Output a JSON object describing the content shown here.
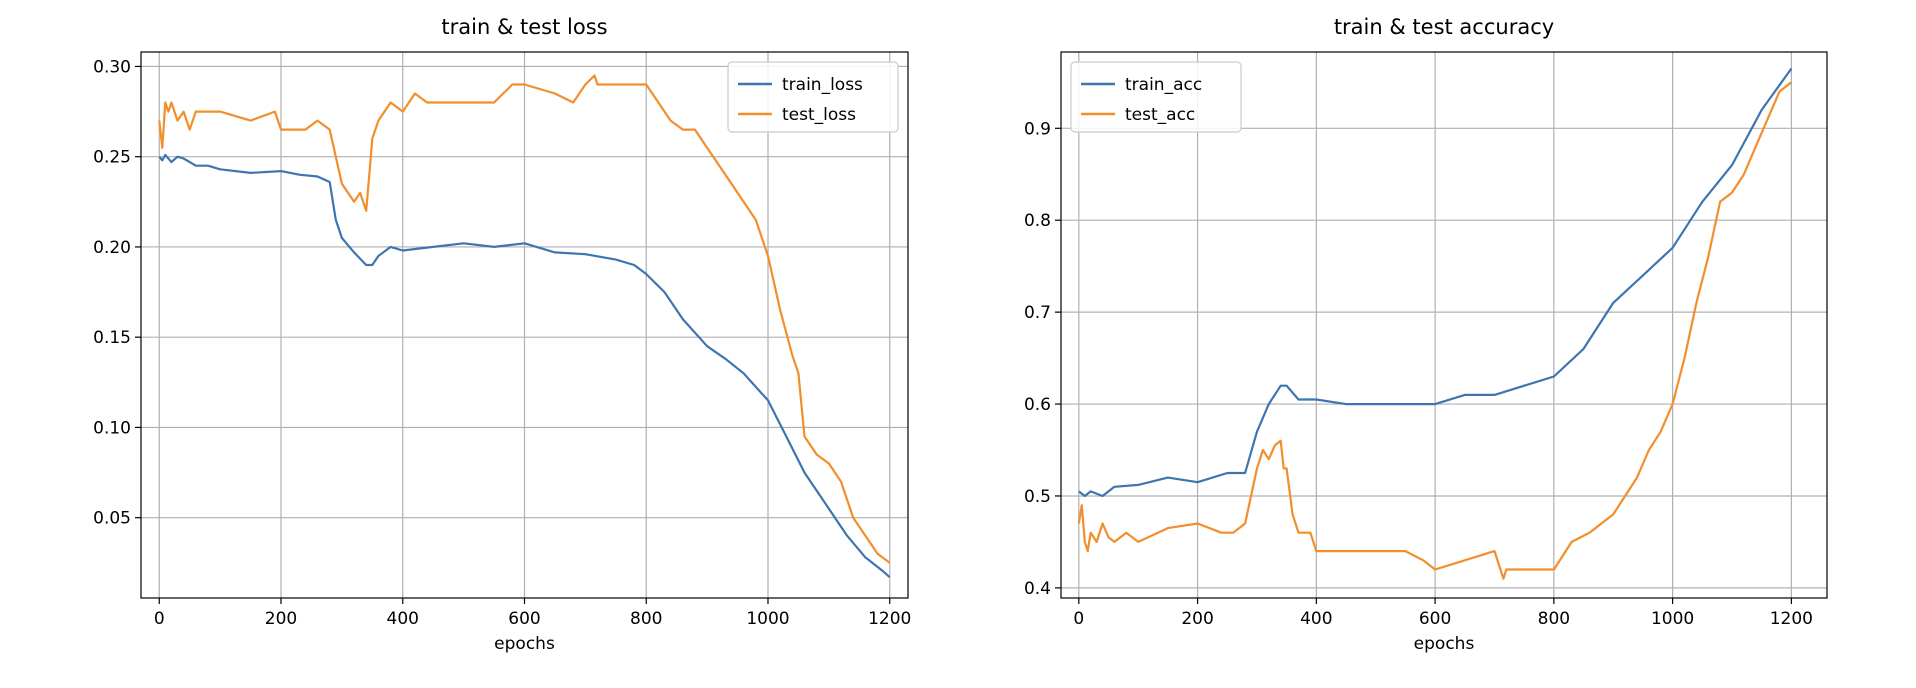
{
  "chart_data": [
    {
      "type": "line",
      "title": "train & test loss",
      "xlabel": "epochs",
      "ylabel": "",
      "xlim": [
        -30,
        1230
      ],
      "ylim": [
        0.0055,
        0.308
      ],
      "xticks": [
        0,
        200,
        400,
        600,
        800,
        1000,
        1200
      ],
      "xtick_labels": [
        "0",
        "200",
        "400",
        "600",
        "800",
        "1000",
        "1200"
      ],
      "yticks": [
        0.05,
        0.1,
        0.15,
        0.2,
        0.25,
        0.3
      ],
      "ytick_labels": [
        "0.05",
        "0.10",
        "0.15",
        "0.20",
        "0.25",
        "0.30"
      ],
      "grid": true,
      "legend": "top-right",
      "series": [
        {
          "name": "train_loss",
          "color": "#3e75b0",
          "x": [
            0,
            5,
            10,
            20,
            30,
            40,
            50,
            60,
            80,
            100,
            150,
            200,
            230,
            260,
            280,
            290,
            300,
            320,
            340,
            350,
            360,
            380,
            400,
            450,
            500,
            550,
            600,
            650,
            700,
            750,
            780,
            800,
            830,
            860,
            900,
            930,
            960,
            1000,
            1030,
            1060,
            1100,
            1130,
            1160,
            1190,
            1200
          ],
          "y": [
            0.25,
            0.248,
            0.251,
            0.247,
            0.25,
            0.249,
            0.247,
            0.245,
            0.245,
            0.243,
            0.241,
            0.242,
            0.24,
            0.239,
            0.236,
            0.215,
            0.205,
            0.197,
            0.19,
            0.19,
            0.195,
            0.2,
            0.198,
            0.2,
            0.202,
            0.2,
            0.202,
            0.197,
            0.196,
            0.193,
            0.19,
            0.185,
            0.175,
            0.16,
            0.145,
            0.138,
            0.13,
            0.115,
            0.095,
            0.075,
            0.055,
            0.04,
            0.028,
            0.02,
            0.017
          ]
        },
        {
          "name": "test_loss",
          "color": "#f28e2b",
          "x": [
            0,
            5,
            10,
            15,
            20,
            30,
            40,
            50,
            60,
            80,
            100,
            150,
            190,
            200,
            240,
            260,
            280,
            290,
            300,
            320,
            330,
            340,
            345,
            350,
            360,
            380,
            400,
            420,
            440,
            500,
            550,
            580,
            600,
            650,
            680,
            700,
            715,
            720,
            750,
            800,
            820,
            840,
            860,
            880,
            900,
            920,
            940,
            960,
            980,
            1000,
            1020,
            1040,
            1050,
            1060,
            1080,
            1100,
            1120,
            1140,
            1160,
            1180,
            1200
          ],
          "y": [
            0.27,
            0.255,
            0.28,
            0.275,
            0.28,
            0.27,
            0.275,
            0.265,
            0.275,
            0.275,
            0.275,
            0.27,
            0.275,
            0.265,
            0.265,
            0.27,
            0.265,
            0.25,
            0.235,
            0.225,
            0.23,
            0.22,
            0.24,
            0.26,
            0.27,
            0.28,
            0.275,
            0.285,
            0.28,
            0.28,
            0.28,
            0.29,
            0.29,
            0.285,
            0.28,
            0.29,
            0.295,
            0.29,
            0.29,
            0.29,
            0.28,
            0.27,
            0.265,
            0.265,
            0.255,
            0.245,
            0.235,
            0.225,
            0.215,
            0.195,
            0.165,
            0.14,
            0.13,
            0.095,
            0.085,
            0.08,
            0.07,
            0.05,
            0.04,
            0.03,
            0.025
          ]
        }
      ]
    },
    {
      "type": "line",
      "title": "train & test accuracy",
      "xlabel": "epochs",
      "ylabel": "",
      "xlim": [
        -30,
        1260
      ],
      "ylim": [
        0.389,
        0.983
      ],
      "xticks": [
        0,
        200,
        400,
        600,
        800,
        1000,
        1200
      ],
      "xtick_labels": [
        "0",
        "200",
        "400",
        "600",
        "800",
        "1000",
        "1200"
      ],
      "yticks": [
        0.4,
        0.5,
        0.6,
        0.7,
        0.8,
        0.9
      ],
      "ytick_labels": [
        "0.4",
        "0.5",
        "0.6",
        "0.7",
        "0.8",
        "0.9"
      ],
      "grid": true,
      "legend": "top-left",
      "series": [
        {
          "name": "train_acc",
          "color": "#3e75b0",
          "x": [
            0,
            10,
            20,
            40,
            60,
            100,
            150,
            200,
            250,
            280,
            300,
            320,
            340,
            350,
            370,
            400,
            450,
            500,
            550,
            600,
            650,
            700,
            750,
            800,
            850,
            900,
            950,
            1000,
            1050,
            1100,
            1150,
            1200
          ],
          "y": [
            0.505,
            0.5,
            0.505,
            0.5,
            0.51,
            0.512,
            0.52,
            0.515,
            0.525,
            0.525,
            0.57,
            0.6,
            0.62,
            0.62,
            0.605,
            0.605,
            0.6,
            0.6,
            0.6,
            0.6,
            0.61,
            0.61,
            0.62,
            0.63,
            0.66,
            0.71,
            0.74,
            0.77,
            0.82,
            0.86,
            0.92,
            0.965
          ]
        },
        {
          "name": "test_acc",
          "color": "#f28e2b",
          "x": [
            0,
            5,
            10,
            15,
            20,
            30,
            40,
            50,
            60,
            80,
            100,
            150,
            200,
            240,
            260,
            280,
            300,
            310,
            320,
            330,
            340,
            345,
            350,
            360,
            370,
            390,
            400,
            450,
            500,
            550,
            580,
            600,
            650,
            700,
            715,
            720,
            750,
            800,
            830,
            860,
            880,
            900,
            920,
            940,
            960,
            980,
            1000,
            1020,
            1040,
            1060,
            1080,
            1100,
            1120,
            1140,
            1160,
            1180,
            1200
          ],
          "y": [
            0.47,
            0.49,
            0.45,
            0.44,
            0.46,
            0.45,
            0.47,
            0.455,
            0.45,
            0.46,
            0.45,
            0.465,
            0.47,
            0.46,
            0.46,
            0.47,
            0.53,
            0.55,
            0.54,
            0.555,
            0.56,
            0.53,
            0.53,
            0.48,
            0.46,
            0.46,
            0.44,
            0.44,
            0.44,
            0.44,
            0.43,
            0.42,
            0.43,
            0.44,
            0.41,
            0.42,
            0.42,
            0.42,
            0.45,
            0.46,
            0.47,
            0.48,
            0.5,
            0.52,
            0.55,
            0.57,
            0.6,
            0.65,
            0.71,
            0.76,
            0.82,
            0.83,
            0.85,
            0.88,
            0.91,
            0.94,
            0.95
          ]
        }
      ]
    }
  ]
}
